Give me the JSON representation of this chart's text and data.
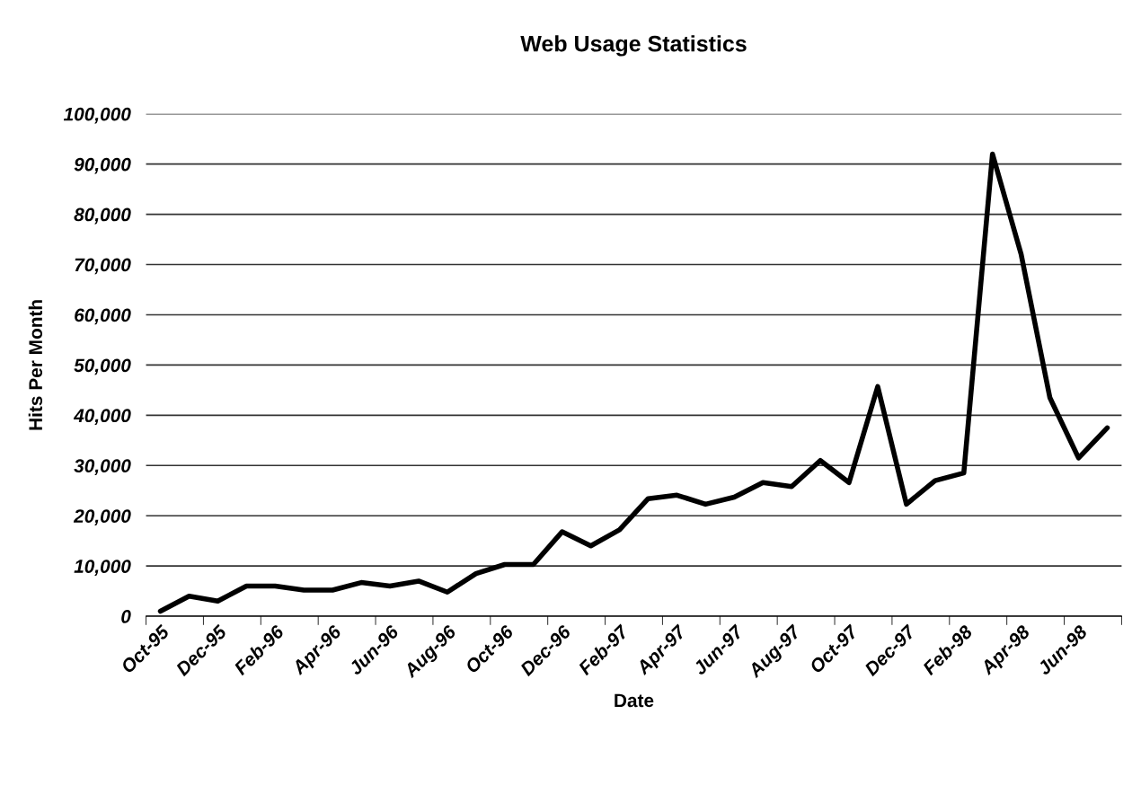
{
  "chart_data": {
    "type": "line",
    "title": "Web Usage Statistics",
    "xlabel": "Date",
    "ylabel": "Hits Per Month",
    "categories": [
      "Oct-95",
      null,
      "Dec-95",
      null,
      "Feb-96",
      null,
      "Apr-96",
      null,
      "Jun-96",
      null,
      "Aug-96",
      null,
      "Oct-96",
      null,
      "Dec-96",
      null,
      "Feb-97",
      null,
      "Apr-97",
      null,
      "Jun-97",
      null,
      "Aug-97",
      null,
      "Oct-97",
      null,
      "Dec-97",
      null,
      "Feb-98",
      null,
      "Apr-98",
      null,
      "Jun-98",
      null
    ],
    "series": [
      {
        "color": "#000000",
        "values": [
          1000,
          4000,
          3000,
          6000,
          6000,
          5200,
          5200,
          6700,
          6000,
          7000,
          4800,
          8500,
          10300,
          10300,
          16800,
          14000,
          17200,
          23400,
          24100,
          22300,
          23700,
          26600,
          25800,
          31000,
          26600,
          45700,
          22300,
          27000,
          28500,
          92000,
          72000,
          43500,
          31500,
          37500
        ]
      }
    ],
    "ylim": [
      0,
      100000
    ],
    "yticks": [
      {
        "value": 0,
        "label": "0"
      },
      {
        "value": 10000,
        "label": "10,000"
      },
      {
        "value": 20000,
        "label": "20,000"
      },
      {
        "value": 30000,
        "label": "30,000"
      },
      {
        "value": 40000,
        "label": "40,000"
      },
      {
        "value": 50000,
        "label": "50,000"
      },
      {
        "value": 60000,
        "label": "60,000"
      },
      {
        "value": 70000,
        "label": "70,000"
      },
      {
        "value": 80000,
        "label": "80,000"
      },
      {
        "value": 90000,
        "label": "90,000"
      },
      {
        "value": 100000,
        "label": "100,000"
      }
    ],
    "grid": "y",
    "marker": "none",
    "line_style": "solid"
  }
}
